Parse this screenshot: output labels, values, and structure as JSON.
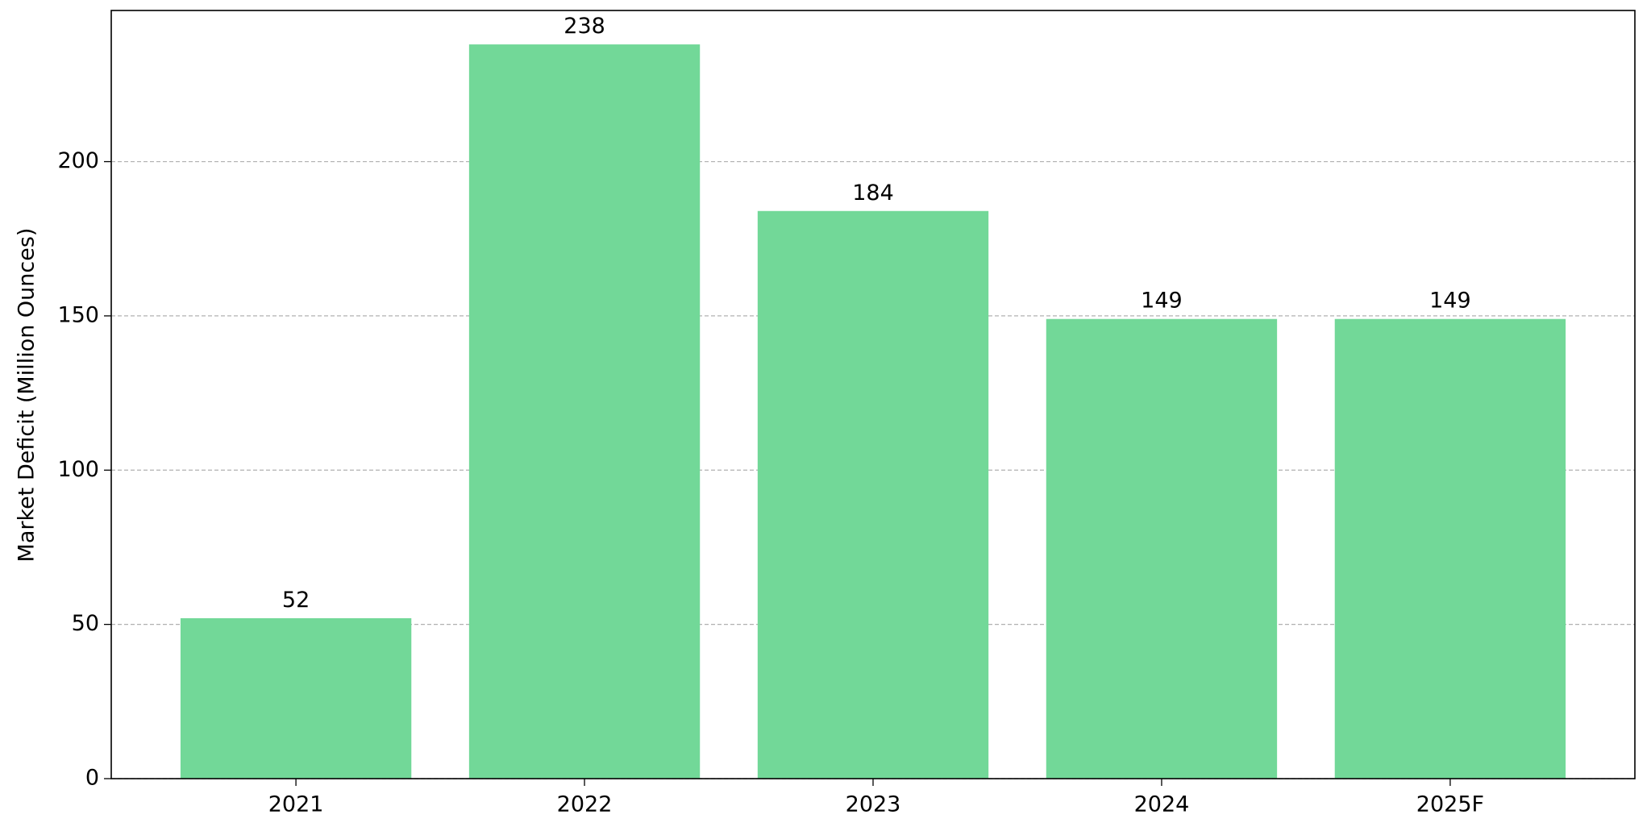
{
  "chart_data": {
    "type": "bar",
    "y_label": "Market Deficit (Million Ounces)",
    "categories": [
      "2021",
      "2022",
      "2023",
      "2024",
      "2025F"
    ],
    "values": [
      52,
      238,
      184,
      149,
      149
    ],
    "color": "#72d898",
    "ylim": [
      0,
      249
    ],
    "yticks": [
      0,
      50,
      100,
      150,
      200
    ],
    "grid": true
  }
}
